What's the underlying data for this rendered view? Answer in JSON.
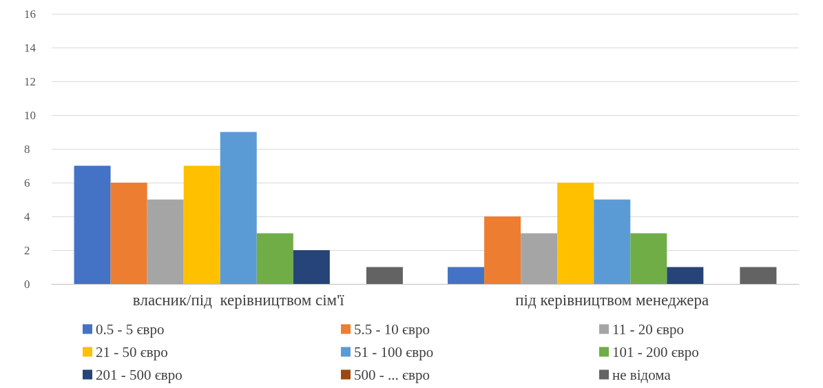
{
  "chart_data": {
    "type": "bar",
    "categories": [
      "власник/під  керівництвом сім'ї",
      "під керівництвом менеджера"
    ],
    "series": [
      {
        "name": "0.5 - 5 євро",
        "color": "#4472c4",
        "values": [
          7,
          1
        ]
      },
      {
        "name": "5.5 - 10 євро",
        "color": "#ed7d31",
        "values": [
          6,
          4
        ]
      },
      {
        "name": "11 - 20 євро",
        "color": "#a5a5a5",
        "values": [
          5,
          3
        ]
      },
      {
        "name": "21 - 50 євро",
        "color": "#ffc000",
        "values": [
          7,
          6
        ]
      },
      {
        "name": "51 - 100 євро",
        "color": "#5b9bd5",
        "values": [
          9,
          5
        ]
      },
      {
        "name": "101 - 200 євро",
        "color": "#70ad47",
        "values": [
          3,
          3
        ]
      },
      {
        "name": "201 - 500 євро",
        "color": "#264478",
        "values": [
          2,
          1
        ]
      },
      {
        "name": "500 - ... євро",
        "color": "#9e480e",
        "values": [
          0,
          0
        ]
      },
      {
        "name": "не відома",
        "color": "#636363",
        "values": [
          1,
          1
        ]
      }
    ],
    "ylim": [
      0,
      16
    ],
    "yticks": [
      0,
      2,
      4,
      6,
      8,
      10,
      12,
      14,
      16
    ],
    "grid": "y",
    "legend": "bottom"
  }
}
